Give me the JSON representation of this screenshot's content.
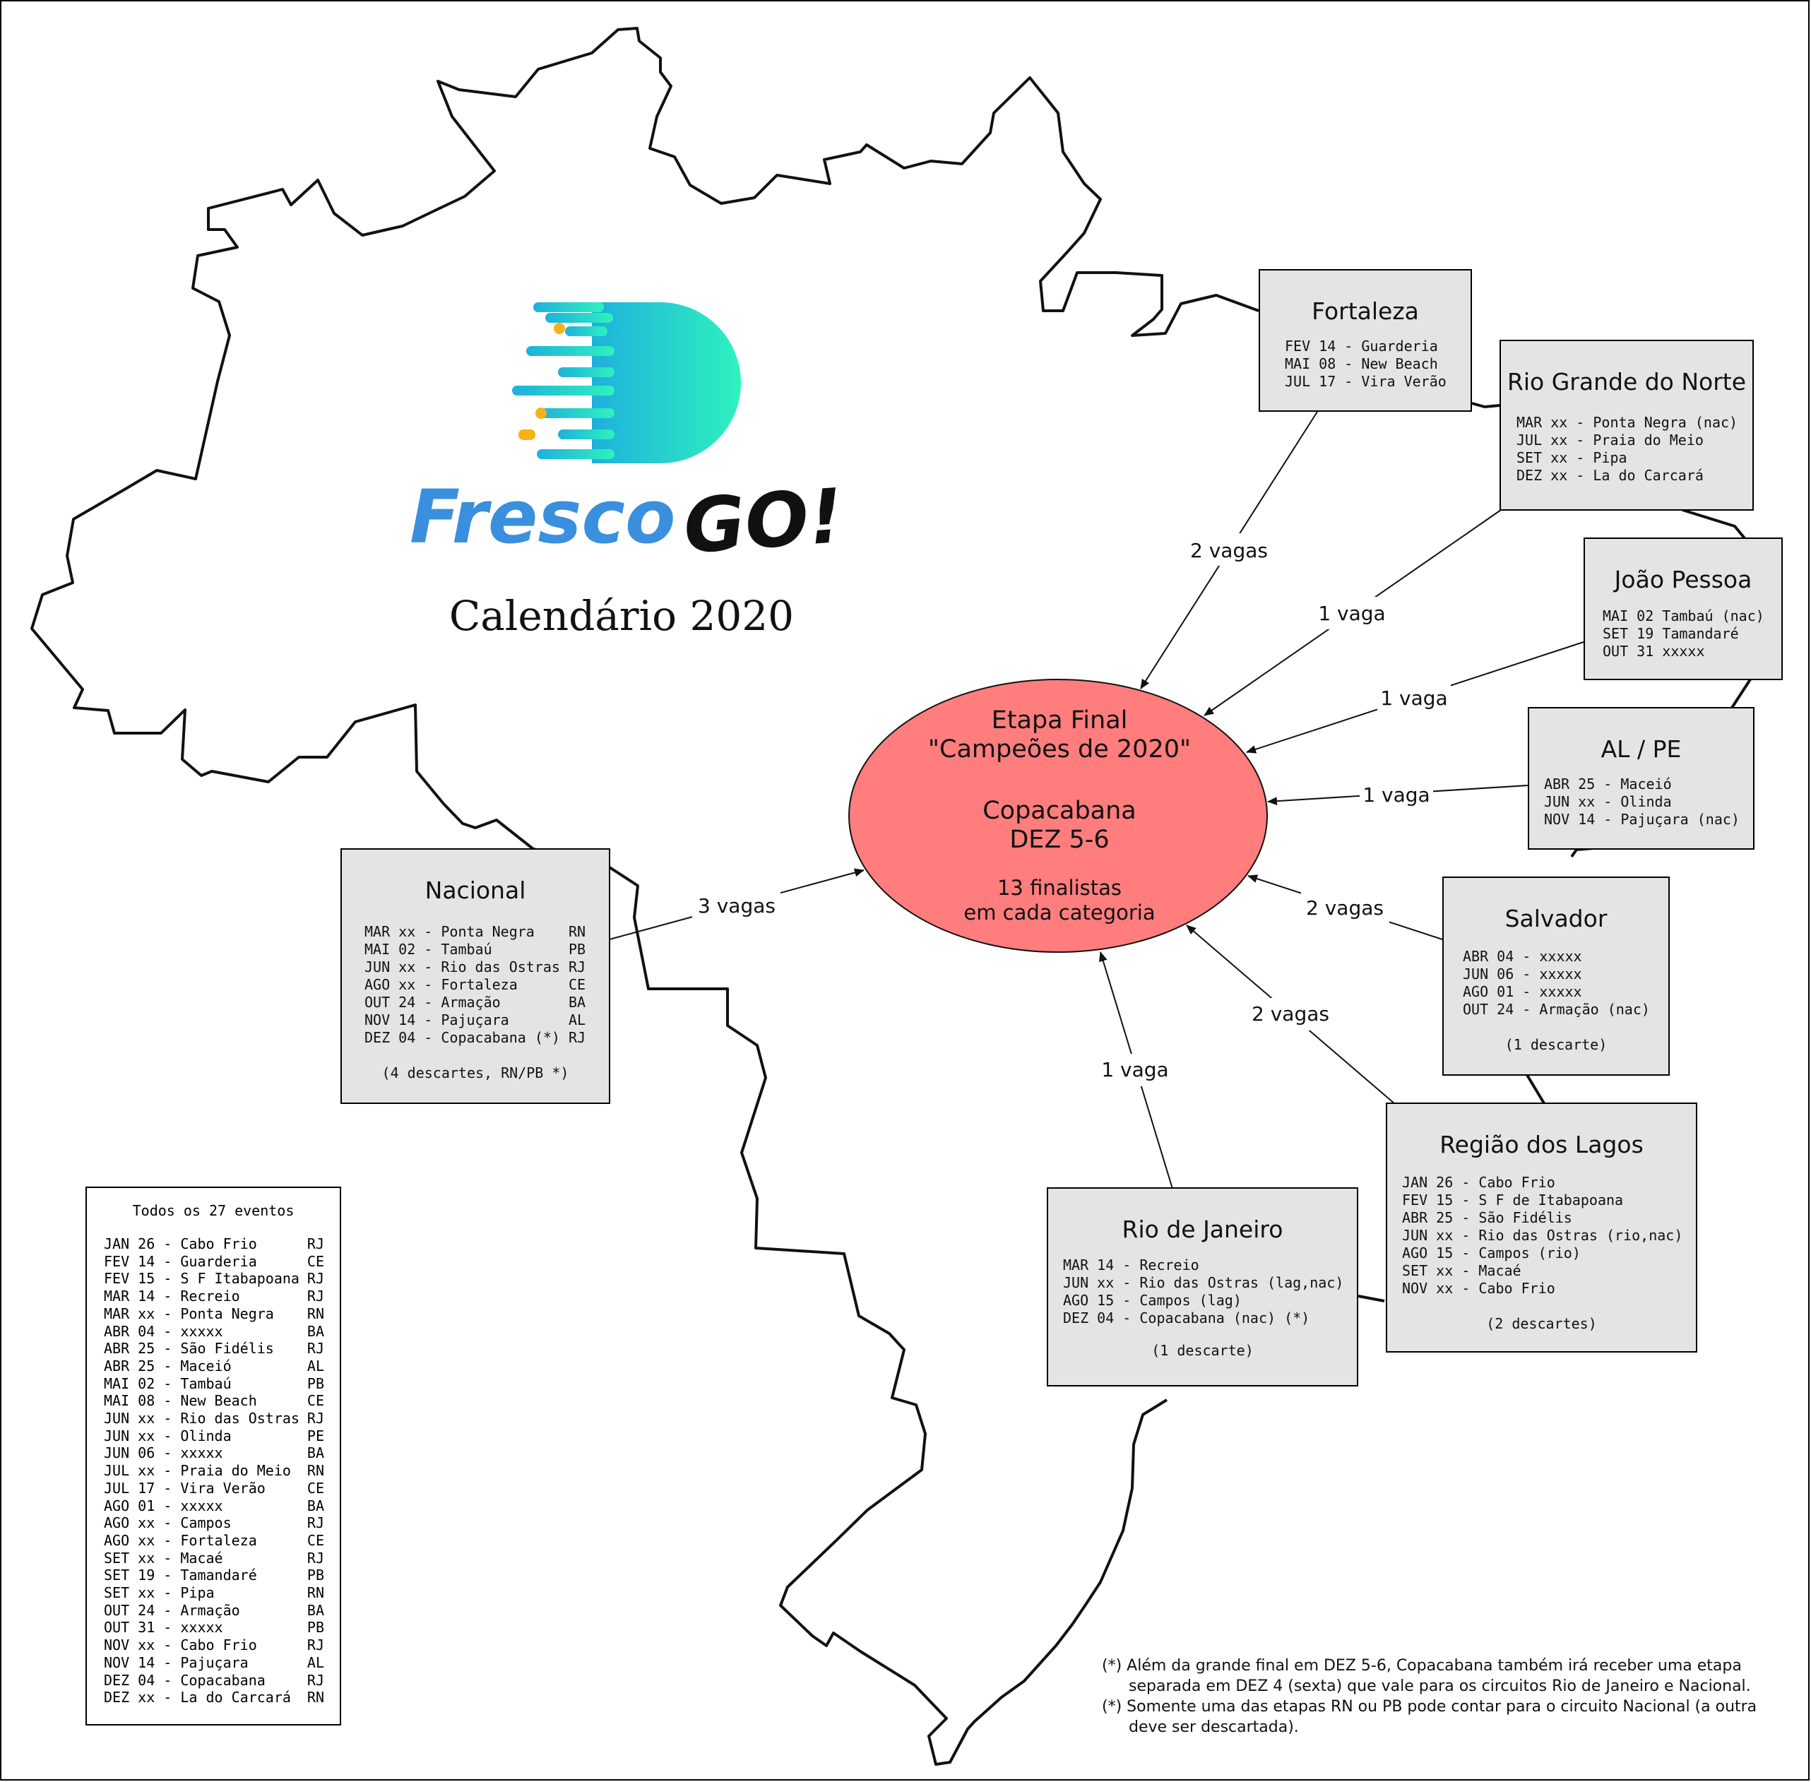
{
  "brand": {
    "logo_word_1": "Fresco",
    "logo_word_2": "GO!",
    "title": "Calendário 2020",
    "colors": {
      "blue": "#3a8fde",
      "teal_start": "#22b8d8",
      "teal_end": "#2ef0c0",
      "dot_orange": "#f5b21a",
      "black": "#111111"
    }
  },
  "final": {
    "line1": "Etapa Final",
    "line2": "\"Campeões de 2020\"",
    "line3": "Copacabana",
    "line4": "DEZ 5-6",
    "line5": "13 finalistas",
    "line6": "em cada categoria",
    "fill": "#ff7d7d"
  },
  "circuits": {
    "fortaleza": {
      "title": "Fortaleza",
      "events": [
        "FEV 14 - Guarderia",
        "MAI 08 - New Beach",
        "JUL 17 - Vira Verão"
      ],
      "vagas": "2 vagas"
    },
    "rn": {
      "title": "Rio Grande do Norte",
      "events": [
        "MAR xx - Ponta Negra (nac)",
        "JUL xx - Praia do Meio",
        "SET xx - Pipa",
        "DEZ xx - La do Carcará"
      ],
      "vagas": "1 vaga"
    },
    "jp": {
      "title": "João Pessoa",
      "events": [
        "MAI 02 Tambaú (nac)",
        "SET 19 Tamandaré",
        "OUT 31 xxxxx"
      ],
      "vagas": "1 vaga"
    },
    "alpe": {
      "title": "AL / PE",
      "events": [
        "ABR 25 - Maceió",
        "JUN xx - Olinda",
        "NOV 14 - Pajuçara (nac)"
      ],
      "vagas": "1 vaga"
    },
    "salvador": {
      "title": "Salvador",
      "events": [
        "ABR 04 - xxxxx",
        "JUN 06 - xxxxx",
        "AGO 01 - xxxxx",
        "OUT 24 - Armação (nac)"
      ],
      "note": "(1 descarte)",
      "vagas": "2 vagas"
    },
    "lagos": {
      "title": "Região dos Lagos",
      "events": [
        "JAN 26 - Cabo Frio",
        "FEV 15 - S F de Itabapoana",
        "ABR 25 - São Fidélis",
        "JUN xx - Rio das Ostras (rio,nac)",
        "AGO 15 - Campos (rio)",
        "SET xx - Macaé",
        "NOV xx - Cabo Frio"
      ],
      "note": "(2 descartes)",
      "vagas": "2 vagas"
    },
    "rio": {
      "title": "Rio de Janeiro",
      "events": [
        "MAR 14 - Recreio",
        "JUN xx - Rio das Ostras (lag,nac)",
        "AGO 15 - Campos (lag)",
        "DEZ 04 - Copacabana (nac) (*)"
      ],
      "note": "(1 descarte)",
      "vagas": "1 vaga"
    },
    "nacional": {
      "title": "Nacional",
      "events": [
        "MAR xx - Ponta Negra    RN",
        "MAI 02 - Tambaú         PB",
        "JUN xx - Rio das Ostras RJ",
        "AGO xx - Fortaleza      CE",
        "OUT 24 - Armação        BA",
        "NOV 14 - Pajuçara       AL",
        "DEZ 04 - Copacabana (*) RJ"
      ],
      "note": "(4 descartes, RN/PB *)",
      "vagas": "3 vagas"
    }
  },
  "all_events": {
    "title": "Todos os 27 eventos",
    "rows": [
      [
        "JAN 26 - Cabo Frio",
        "RJ"
      ],
      [
        "FEV 14 - Guarderia",
        "CE"
      ],
      [
        "FEV 15 - S F Itabapoana",
        "RJ"
      ],
      [
        "MAR 14 - Recreio",
        "RJ"
      ],
      [
        "MAR xx - Ponta Negra",
        "RN"
      ],
      [
        "ABR 04 - xxxxx",
        "BA"
      ],
      [
        "ABR 25 - São Fidélis",
        "RJ"
      ],
      [
        "ABR 25 - Maceió",
        "AL"
      ],
      [
        "MAI 02 - Tambaú",
        "PB"
      ],
      [
        "MAI 08 - New Beach",
        "CE"
      ],
      [
        "JUN xx - Rio das Ostras",
        "RJ"
      ],
      [
        "JUN xx - Olinda",
        "PE"
      ],
      [
        "JUN 06 - xxxxx",
        "BA"
      ],
      [
        "JUL xx - Praia do Meio",
        "RN"
      ],
      [
        "JUL 17 - Vira Verão",
        "CE"
      ],
      [
        "AGO 01 - xxxxx",
        "BA"
      ],
      [
        "AGO xx - Campos",
        "RJ"
      ],
      [
        "AGO xx - Fortaleza",
        "CE"
      ],
      [
        "SET xx - Macaé",
        "RJ"
      ],
      [
        "SET 19 - Tamandaré",
        "PB"
      ],
      [
        "SET xx - Pipa",
        "RN"
      ],
      [
        "OUT 24 - Armação",
        "BA"
      ],
      [
        "OUT 31 - xxxxx",
        "PB"
      ],
      [
        "NOV xx - Cabo Frio",
        "RJ"
      ],
      [
        "NOV 14 - Pajuçara",
        "AL"
      ],
      [
        "DEZ 04 - Copacabana",
        "RJ"
      ],
      [
        "DEZ xx - La do Carcará",
        "RN"
      ]
    ]
  },
  "footnotes": [
    "(*) Além da grande final em DEZ 5-6, Copacabana também irá receber uma etapa separada em DEZ 4 (sexta) que vale para os circuitos Rio de Janeiro e Nacional.",
    "(*) Somente uma das etapas RN ou PB pode contar para o circuito Nacional (a outra deve ser descartada)."
  ]
}
